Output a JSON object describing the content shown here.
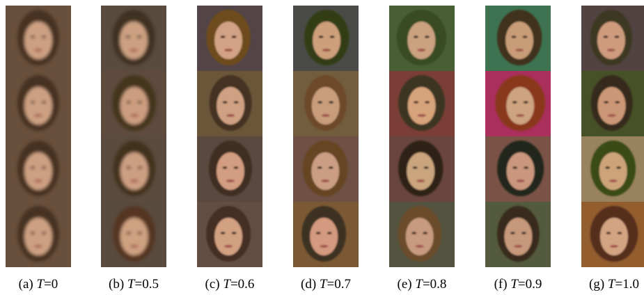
{
  "figure": {
    "panels": [
      {
        "prefix": "(a)",
        "symbol": "T",
        "value": "=0"
      },
      {
        "prefix": "(b)",
        "symbol": "T",
        "value": "=0.5"
      },
      {
        "prefix": "(c)",
        "symbol": "T",
        "value": "=0.6"
      },
      {
        "prefix": "(d)",
        "symbol": "T",
        "value": "=0.7"
      },
      {
        "prefix": "(e)",
        "symbol": "T",
        "value": "=0.8"
      },
      {
        "prefix": "(f)",
        "symbol": "T",
        "value": "=0.9"
      },
      {
        "prefix": "(g)",
        "symbol": "T",
        "value": "=1.0"
      }
    ]
  }
}
